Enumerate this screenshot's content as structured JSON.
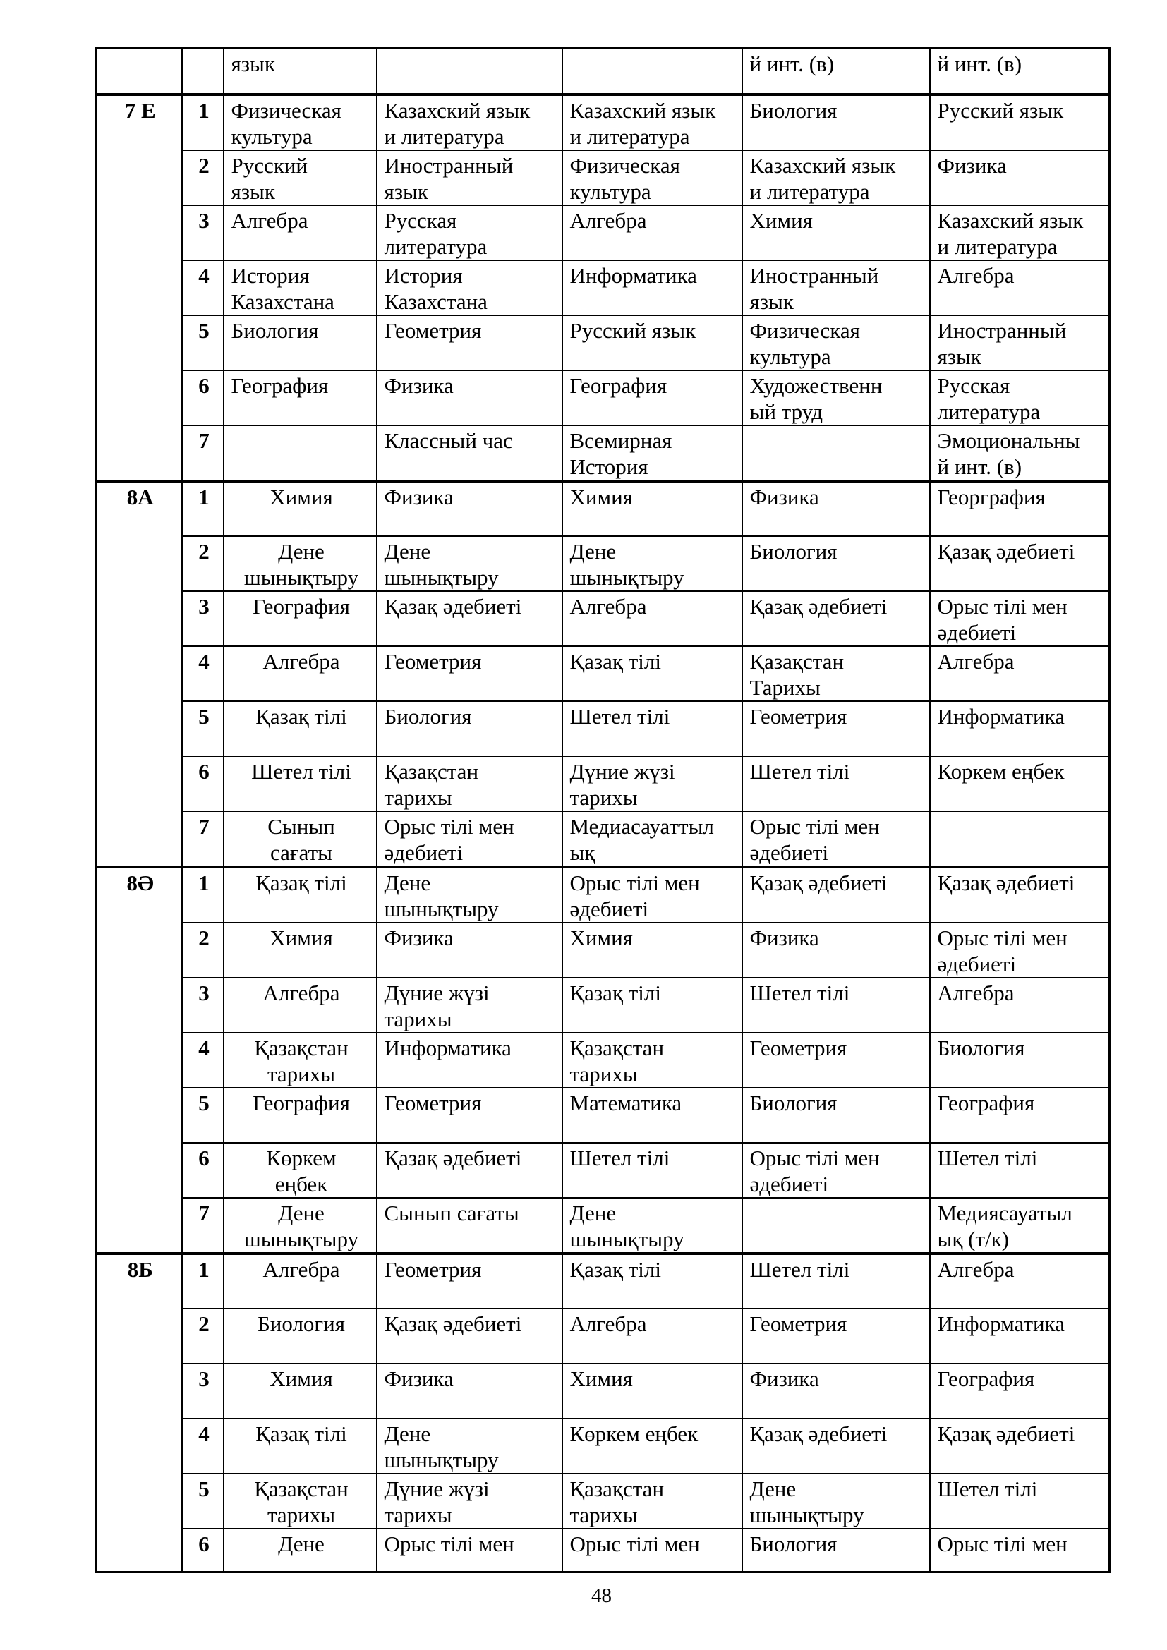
{
  "page": {
    "number": "48"
  },
  "table": {
    "continuation_row": {
      "class_label": "",
      "period": "",
      "subjects": [
        "язык",
        "",
        "",
        "й инт. (в)",
        "й инт. (в)"
      ]
    },
    "sections": [
      {
        "class_label": "7 Е",
        "col1_align": "left",
        "rows": [
          {
            "period": "1",
            "subjects": [
              "Физическая\nкультура",
              "Казахский язык\nи литература",
              "Казахский язык\nи литература",
              "Биология",
              "Русский язык"
            ]
          },
          {
            "period": "2",
            "subjects": [
              "Русский\nязык",
              "Иностранный\nязык",
              "Физическая\nкультура",
              "Казахский язык\nи литература",
              "Физика"
            ]
          },
          {
            "period": "3",
            "subjects": [
              "Алгебра",
              "Русская\nлитература",
              "Алгебра",
              "Химия",
              "Казахский язык\nи литература"
            ]
          },
          {
            "period": "4",
            "subjects": [
              "История\nКазахстана",
              "История\nКазахстана",
              "Информатика",
              "Иностранный\nязык",
              "Алгебра"
            ]
          },
          {
            "period": "5",
            "subjects": [
              "Биология",
              "Геометрия",
              "Русский язык",
              "Физическая\nкультура",
              "Иностранный\nязык"
            ]
          },
          {
            "period": "6",
            "subjects": [
              "География",
              "Физика",
              "География",
              "Художественн\nый труд",
              "Русская\nлитература"
            ]
          },
          {
            "period": "7",
            "subjects": [
              "",
              "Классный час",
              "Всемирная\nИстория",
              "",
              "Эмоциональны\nй инт. (в)"
            ]
          }
        ]
      },
      {
        "class_label": "8А",
        "col1_align": "center",
        "rows": [
          {
            "period": "1",
            "subjects": [
              "Химия",
              "Физика",
              "Химия",
              "Физика",
              "Георграфия"
            ]
          },
          {
            "period": "2",
            "subjects": [
              "Дене\nшынықтыру",
              "Дене\nшынықтыру",
              "Дене\nшынықтыру",
              "Биология",
              "Қазақ әдебиеті"
            ]
          },
          {
            "period": "3",
            "subjects": [
              "География",
              "Қазақ әдебиеті",
              "Алгебра",
              "Қазақ әдебиеті",
              "Орыс тілі мен\nәдебиеті"
            ]
          },
          {
            "period": "4",
            "subjects": [
              "Алгебра",
              "Геометрия",
              "Қазақ тілі",
              "Қазақстан\nТарихы",
              "Алгебра"
            ]
          },
          {
            "period": "5",
            "subjects": [
              "Қазақ тілі",
              "Биология",
              "Шетел тілі",
              "Геометрия",
              "Информатика"
            ]
          },
          {
            "period": "6",
            "subjects": [
              "Шетел тілі",
              "Қазақстан\nтарихы",
              "Дүние жүзі\nтарихы",
              "Шетел тілі",
              "Коркем еңбек"
            ]
          },
          {
            "period": "7",
            "subjects": [
              "Сынып\nсағаты",
              "Орыс тілі мен\nәдебиеті",
              "Медиасауаттыл\nық",
              "Орыс тілі мен\nәдебиеті",
              ""
            ]
          }
        ]
      },
      {
        "class_label": "8Ә",
        "col1_align": "center",
        "rows": [
          {
            "period": "1",
            "subjects": [
              "Қазақ тілі",
              "Дене\nшынықтыру",
              "Орыс тілі мен\nәдебиеті",
              "Қазақ әдебиеті",
              "Қазақ әдебиеті"
            ]
          },
          {
            "period": "2",
            "subjects": [
              "Химия",
              "Физика",
              "Химия",
              "Физика",
              "Орыс тілі мен\nәдебиеті"
            ]
          },
          {
            "period": "3",
            "subjects": [
              "Алгебра",
              "Дүние жүзі\nтарихы",
              "Қазақ тілі",
              "Шетел тілі",
              "Алгебра"
            ]
          },
          {
            "period": "4",
            "subjects": [
              "Қазақстан\nтарихы",
              "Информатика",
              "Қазақстан\nтарихы",
              "Геометрия",
              "Биология"
            ]
          },
          {
            "period": "5",
            "subjects": [
              "География",
              "Геометрия",
              "Математика",
              "Биология",
              "География"
            ]
          },
          {
            "period": "6",
            "subjects": [
              "Көркем\nеңбек",
              "Қазақ әдебиеті",
              "Шетел тілі",
              "Орыс тілі мен\nәдебиеті",
              "Шетел тілі"
            ]
          },
          {
            "period": "7",
            "subjects": [
              "Дене\nшынықтыру",
              "Сынып сағаты",
              "Дене\nшынықтыру",
              "",
              "Медиясауатыл\nық (т/к)"
            ]
          }
        ]
      },
      {
        "class_label": "8Б",
        "col1_align": "center",
        "rows": [
          {
            "period": "1",
            "subjects": [
              "Алгебра",
              "Геометрия",
              "Қазақ тілі",
              "Шетел тілі",
              "Алгебра"
            ]
          },
          {
            "period": "2",
            "subjects": [
              "Биология",
              "Қазақ әдебиеті",
              "Алгебра",
              "Геометрия",
              "Информатика"
            ]
          },
          {
            "period": "3",
            "subjects": [
              "Химия",
              "Физика",
              "Химия",
              "Физика",
              "География"
            ]
          },
          {
            "period": "4",
            "subjects": [
              "Қазақ тілі",
              "Дене\nшынықтыру",
              "Көркем еңбек",
              "Қазақ әдебиеті",
              "Қазақ әдебиеті"
            ]
          },
          {
            "period": "5",
            "subjects": [
              "Қазақстан\nтарихы",
              "Дүние жүзі\nтарихы",
              "Қазақстан\nтарихы",
              "Дене\nшынықтыру",
              "Шетел тілі"
            ]
          },
          {
            "period": "6",
            "subjects": [
              "Дене",
              "Орыс тілі мен",
              "Орыс тілі мен",
              "Биология",
              "Орыс тілі мен"
            ]
          }
        ]
      }
    ]
  }
}
